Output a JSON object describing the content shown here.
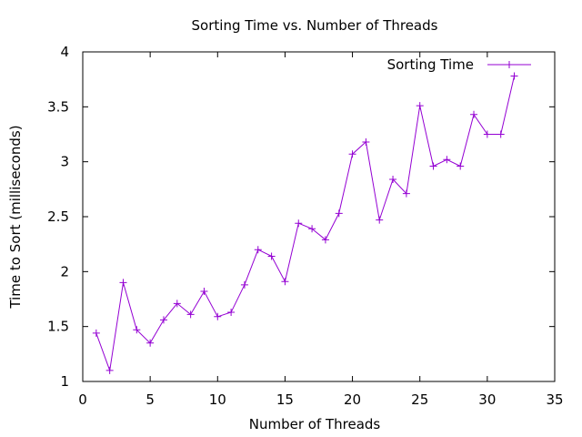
{
  "chart_data": {
    "type": "line",
    "title": "Sorting Time vs. Number of Threads",
    "xlabel": "Number of Threads",
    "ylabel": "Time to Sort (milliseconds)",
    "xlim": [
      0,
      35
    ],
    "ylim": [
      1,
      4
    ],
    "xticks": [
      0,
      5,
      10,
      15,
      20,
      25,
      30,
      35
    ],
    "yticks": [
      1,
      1.5,
      2,
      2.5,
      3,
      3.5,
      4
    ],
    "ytick_labels": [
      "1",
      "1.5",
      "2",
      "2.5",
      "3",
      "3.5",
      "4"
    ],
    "grid": false,
    "legend_position": "top-right",
    "series": [
      {
        "name": "Sorting Time",
        "color": "#9400d3",
        "marker": "plus",
        "x": [
          1,
          2,
          3,
          4,
          5,
          6,
          7,
          8,
          9,
          10,
          11,
          12,
          13,
          14,
          15,
          16,
          17,
          18,
          19,
          20,
          21,
          22,
          23,
          24,
          25,
          26,
          27,
          28,
          29,
          30,
          31,
          32
        ],
        "values": [
          1.44,
          1.1,
          1.9,
          1.47,
          1.35,
          1.56,
          1.71,
          1.61,
          1.82,
          1.59,
          1.63,
          1.88,
          2.2,
          2.14,
          1.91,
          2.44,
          2.39,
          2.29,
          2.53,
          3.07,
          3.18,
          2.47,
          2.84,
          2.71,
          3.51,
          2.96,
          3.02,
          2.96,
          3.43,
          3.25,
          3.25,
          3.78
        ]
      }
    ]
  }
}
